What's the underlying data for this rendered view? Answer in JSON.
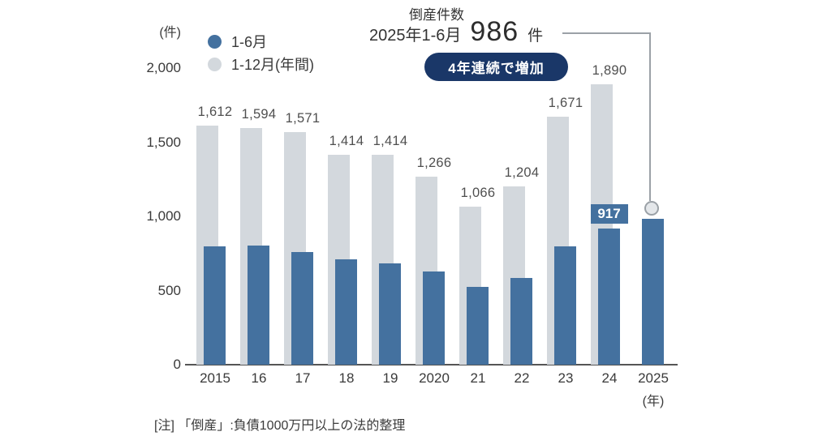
{
  "colors": {
    "first_half_bar": "#44719f",
    "annual_bar": "#d3d8dd",
    "badge_bg": "#1a3768",
    "callout_line": "#9ba1a7",
    "axis": "#555555"
  },
  "legend": {
    "items": [
      {
        "label": "1-6月",
        "color": "#44719f"
      },
      {
        "label": "1-12月(年間)",
        "color": "#d3d8dd"
      }
    ]
  },
  "callout": {
    "title": "倒産件数",
    "period": "2025年1-6月",
    "value": "986",
    "unit": "件"
  },
  "badge": {
    "label": "4年連続で増加"
  },
  "note": "[注] 「倒産」:負債1000万円以上の法的整理",
  "chart_data": {
    "type": "bar",
    "title": "倒産件数 2025年1-6月 986件",
    "unit_label": "(件)",
    "x_suffix": "(年)",
    "categories": [
      "2015",
      "16",
      "17",
      "18",
      "19",
      "2020",
      "21",
      "22",
      "23",
      "24",
      "2025"
    ],
    "series": [
      {
        "name": "1-6月",
        "color": "#44719f",
        "values": [
          800,
          805,
          760,
          710,
          685,
          630,
          525,
          585,
          800,
          917,
          986
        ]
      },
      {
        "name": "1-12月(年間)",
        "color": "#d3d8dd",
        "values": [
          1612,
          1594,
          1571,
          1414,
          1414,
          1266,
          1066,
          1204,
          1671,
          1890,
          null
        ]
      }
    ],
    "annual_value_labels": [
      "1,612",
      "1,594",
      "1,571",
      "1,414",
      "1,414",
      "1,266",
      "1,066",
      "1,204",
      "1,671",
      "1,890"
    ],
    "inline_label": {
      "category": "24",
      "index": 9,
      "text": "917"
    },
    "callout_point": {
      "category": "2025",
      "index": 10,
      "value": 986
    },
    "y_ticks": [
      2000,
      1500,
      1000,
      500,
      0
    ],
    "ylim": [
      0,
      2000
    ],
    "grid": false,
    "legend_position": "top-left"
  }
}
